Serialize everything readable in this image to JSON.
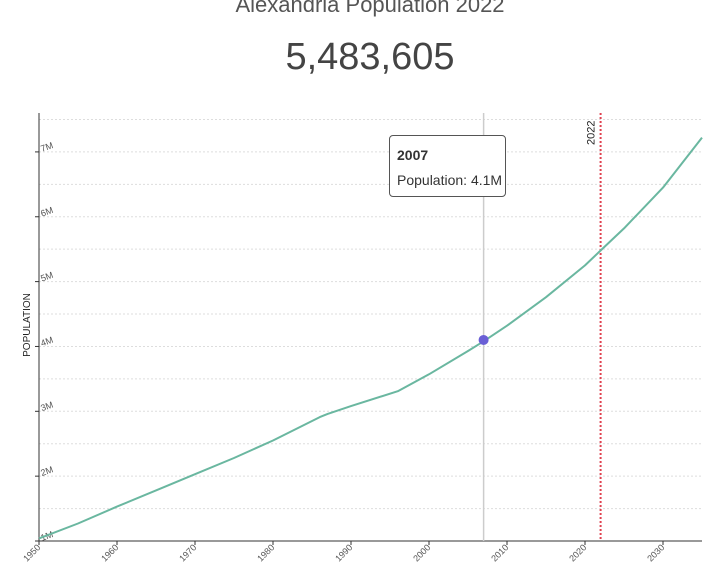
{
  "header": {
    "title": "Alexandria Population 2022",
    "current_value": "5,483,605"
  },
  "tooltip": {
    "year": "2007",
    "label": "Population:",
    "value": "4.1M"
  },
  "marker_label": "2022",
  "colors": {
    "line": "#6ab7a0",
    "marker_line": "#e0414f",
    "hover_point": "#6a5fd6",
    "hover_line": "#cccccc",
    "grid": "#dddddd"
  },
  "chart_data": {
    "type": "line",
    "title": "Alexandria Population 2022",
    "xlabel": "",
    "ylabel": "POPULATION",
    "xlim": [
      1950,
      2035
    ],
    "ylim": [
      1.0,
      7.6
    ],
    "x_ticks": [
      1950,
      1960,
      1970,
      1980,
      1990,
      2000,
      2010,
      2020,
      2030
    ],
    "y_ticks": [
      1,
      2,
      3,
      4,
      5,
      6,
      7
    ],
    "y_tick_labels": [
      "1M",
      "2M",
      "3M",
      "4M",
      "5M",
      "6M",
      "7M"
    ],
    "grid": "horizontal dotted",
    "vertical_marker": 2022,
    "highlight": {
      "x": 2007,
      "y": 4.1
    },
    "series": [
      {
        "x": [
          1950,
          1955,
          1960,
          1966,
          1970,
          1975,
          1980,
          1986,
          1987,
          1990,
          1996,
          2000,
          2005,
          2007,
          2010,
          2015,
          2020,
          2022,
          2025,
          2030,
          2035
        ],
        "y": [
          1.04,
          1.27,
          1.53,
          1.83,
          2.03,
          2.28,
          2.55,
          2.91,
          2.96,
          3.08,
          3.31,
          3.57,
          3.93,
          4.08,
          4.32,
          4.76,
          5.25,
          5.48,
          5.82,
          6.45,
          7.22
        ]
      }
    ]
  }
}
